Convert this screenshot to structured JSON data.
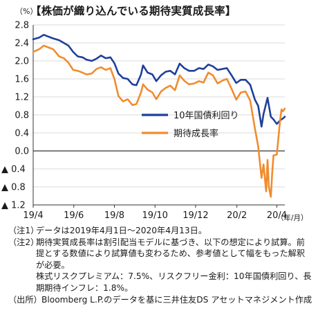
{
  "title": "【株価が織り込んでいる期待実質成長率】",
  "notes": [
    {
      "label": "（注1）",
      "text": "データは2019年4月1日～2020年4月13日。"
    },
    {
      "label": "（注2）",
      "text": "期待実質成長率は割引配当モデルに基づき、以下の想定により試算。前提とする数値により試算値も変わるため、参考値として幅をもった解釈が必要。"
    },
    {
      "label": "",
      "text": "株式リスクプレミアム：7.5%、リスクフリー金利：10年国債利回り、長期期待インフレ：1.8%。"
    }
  ],
  "source": {
    "label": "（出所）",
    "text": "Bloomberg L.P.のデータを基に三井住友DS アセットマネジメント作成"
  },
  "chart_data": {
    "type": "line",
    "y_unit": "（%）",
    "x_unit": "（年/月）",
    "ylim": [
      -1.2,
      2.8
    ],
    "yticks": [
      2.8,
      2.4,
      2.0,
      1.6,
      1.2,
      0.8,
      0.4,
      0.0,
      -0.4,
      -0.8,
      -1.2
    ],
    "ytick_labels": [
      "2.8",
      "2.4",
      "2.0",
      "1.6",
      "1.2",
      "0.8",
      "0.4",
      "0.0",
      "▲ 0.4",
      "▲ 0.8",
      "▲ 1.2"
    ],
    "xtick_labels": [
      "19/4",
      "19/6",
      "19/8",
      "19/10",
      "19/12",
      "20/2",
      "20/4"
    ],
    "xticks": [
      "2019-04-01",
      "2019-06-01",
      "2019-08-01",
      "2019-10-01",
      "2019-12-01",
      "2020-02-01",
      "2020-04-01"
    ],
    "xlim": [
      "2019-04-01",
      "2020-04-13"
    ],
    "grid": "horizontal",
    "legend_position": "right-middle",
    "series": [
      {
        "name": "10年国債利回り",
        "color": "#1f3f9a",
        "points": [
          [
            "2019-04-01",
            2.48
          ],
          [
            "2019-04-10",
            2.52
          ],
          [
            "2019-04-17",
            2.58
          ],
          [
            "2019-04-24",
            2.54
          ],
          [
            "2019-05-01",
            2.5
          ],
          [
            "2019-05-10",
            2.46
          ],
          [
            "2019-05-17",
            2.4
          ],
          [
            "2019-05-24",
            2.34
          ],
          [
            "2019-05-31",
            2.2
          ],
          [
            "2019-06-07",
            2.1
          ],
          [
            "2019-06-14",
            2.08
          ],
          [
            "2019-06-20",
            2.03
          ],
          [
            "2019-06-28",
            2.0
          ],
          [
            "2019-07-05",
            2.05
          ],
          [
            "2019-07-12",
            2.12
          ],
          [
            "2019-07-19",
            2.06
          ],
          [
            "2019-07-26",
            2.08
          ],
          [
            "2019-08-01",
            1.95
          ],
          [
            "2019-08-07",
            1.72
          ],
          [
            "2019-08-14",
            1.62
          ],
          [
            "2019-08-21",
            1.6
          ],
          [
            "2019-08-28",
            1.48
          ],
          [
            "2019-09-03",
            1.46
          ],
          [
            "2019-09-10",
            1.7
          ],
          [
            "2019-09-13",
            1.9
          ],
          [
            "2019-09-20",
            1.74
          ],
          [
            "2019-09-27",
            1.7
          ],
          [
            "2019-10-03",
            1.55
          ],
          [
            "2019-10-10",
            1.68
          ],
          [
            "2019-10-17",
            1.76
          ],
          [
            "2019-10-24",
            1.78
          ],
          [
            "2019-10-31",
            1.7
          ],
          [
            "2019-11-07",
            1.94
          ],
          [
            "2019-11-14",
            1.84
          ],
          [
            "2019-11-21",
            1.78
          ],
          [
            "2019-11-29",
            1.78
          ],
          [
            "2019-12-06",
            1.84
          ],
          [
            "2019-12-13",
            1.82
          ],
          [
            "2019-12-20",
            1.92
          ],
          [
            "2019-12-27",
            1.88
          ],
          [
            "2020-01-03",
            1.8
          ],
          [
            "2020-01-10",
            1.82
          ],
          [
            "2020-01-17",
            1.84
          ],
          [
            "2020-01-24",
            1.68
          ],
          [
            "2020-01-31",
            1.51
          ],
          [
            "2020-02-07",
            1.58
          ],
          [
            "2020-02-14",
            1.58
          ],
          [
            "2020-02-21",
            1.47
          ],
          [
            "2020-02-28",
            1.14
          ],
          [
            "2020-03-04",
            1.0
          ],
          [
            "2020-03-09",
            0.54
          ],
          [
            "2020-03-12",
            0.82
          ],
          [
            "2020-03-18",
            1.18
          ],
          [
            "2020-03-23",
            0.76
          ],
          [
            "2020-03-27",
            0.7
          ],
          [
            "2020-04-01",
            0.6
          ],
          [
            "2020-04-06",
            0.68
          ],
          [
            "2020-04-10",
            0.72
          ],
          [
            "2020-04-13",
            0.76
          ]
        ]
      },
      {
        "name": "期待成長率",
        "color": "#f08c2e",
        "points": [
          [
            "2019-04-01",
            2.2
          ],
          [
            "2019-04-10",
            2.26
          ],
          [
            "2019-04-17",
            2.34
          ],
          [
            "2019-04-24",
            2.3
          ],
          [
            "2019-05-01",
            2.26
          ],
          [
            "2019-05-10",
            2.1
          ],
          [
            "2019-05-17",
            2.06
          ],
          [
            "2019-05-24",
            1.96
          ],
          [
            "2019-05-31",
            1.8
          ],
          [
            "2019-06-07",
            1.78
          ],
          [
            "2019-06-14",
            1.74
          ],
          [
            "2019-06-20",
            1.7
          ],
          [
            "2019-06-28",
            1.72
          ],
          [
            "2019-07-05",
            1.82
          ],
          [
            "2019-07-12",
            1.86
          ],
          [
            "2019-07-19",
            1.8
          ],
          [
            "2019-07-26",
            1.84
          ],
          [
            "2019-08-01",
            1.6
          ],
          [
            "2019-08-07",
            1.22
          ],
          [
            "2019-08-14",
            1.1
          ],
          [
            "2019-08-21",
            1.15
          ],
          [
            "2019-08-28",
            1.02
          ],
          [
            "2019-09-03",
            1.04
          ],
          [
            "2019-09-10",
            1.3
          ],
          [
            "2019-09-13",
            1.48
          ],
          [
            "2019-09-20",
            1.36
          ],
          [
            "2019-09-27",
            1.3
          ],
          [
            "2019-10-03",
            1.15
          ],
          [
            "2019-10-10",
            1.32
          ],
          [
            "2019-10-17",
            1.4
          ],
          [
            "2019-10-24",
            1.45
          ],
          [
            "2019-10-31",
            1.35
          ],
          [
            "2019-11-07",
            1.68
          ],
          [
            "2019-11-14",
            1.56
          ],
          [
            "2019-11-21",
            1.48
          ],
          [
            "2019-11-29",
            1.5
          ],
          [
            "2019-12-06",
            1.55
          ],
          [
            "2019-12-13",
            1.52
          ],
          [
            "2019-12-20",
            1.74
          ],
          [
            "2019-12-27",
            1.68
          ],
          [
            "2020-01-03",
            1.5
          ],
          [
            "2020-01-10",
            1.56
          ],
          [
            "2020-01-17",
            1.6
          ],
          [
            "2020-01-24",
            1.38
          ],
          [
            "2020-01-31",
            1.14
          ],
          [
            "2020-02-07",
            1.3
          ],
          [
            "2020-02-14",
            1.32
          ],
          [
            "2020-02-21",
            1.12
          ],
          [
            "2020-02-28",
            0.5
          ],
          [
            "2020-03-04",
            0.1
          ],
          [
            "2020-03-09",
            -0.6
          ],
          [
            "2020-03-12",
            -0.3
          ],
          [
            "2020-03-16",
            -0.9
          ],
          [
            "2020-03-18",
            -0.2
          ],
          [
            "2020-03-20",
            -0.8
          ],
          [
            "2020-03-23",
            -1.02
          ],
          [
            "2020-03-25",
            -0.5
          ],
          [
            "2020-03-27",
            -0.1
          ],
          [
            "2020-04-01",
            -0.08
          ],
          [
            "2020-04-06",
            0.7
          ],
          [
            "2020-04-08",
            0.92
          ],
          [
            "2020-04-10",
            0.88
          ],
          [
            "2020-04-13",
            0.94
          ]
        ]
      }
    ]
  }
}
